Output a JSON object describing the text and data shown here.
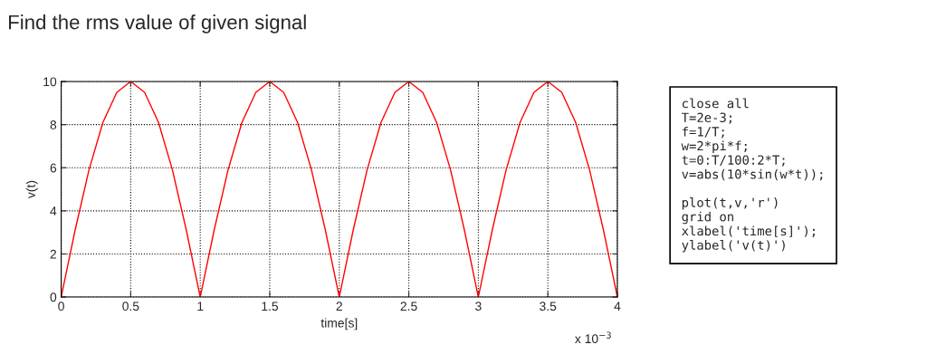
{
  "chart_data": {
    "type": "line",
    "title": "Find the rms value of given signal",
    "xlabel": "time[s]",
    "ylabel": "v(t)",
    "x": [
      0,
      0.1,
      0.2,
      0.3,
      0.4,
      0.5,
      0.6,
      0.7,
      0.8,
      0.9,
      1,
      1.1,
      1.2,
      1.3,
      1.4,
      1.5,
      1.6,
      1.7,
      1.8,
      1.9,
      2,
      2.1,
      2.2,
      2.3,
      2.4,
      2.5,
      2.6,
      2.7,
      2.8,
      2.9,
      3,
      3.1,
      3.2,
      3.3,
      3.4,
      3.5,
      3.6,
      3.7,
      3.8,
      3.9,
      4
    ],
    "series": [
      {
        "color": "#ff0000",
        "values": [
          0,
          3.1,
          5.9,
          8.1,
          9.5,
          10,
          9.5,
          8.1,
          5.9,
          3.1,
          0,
          3.1,
          5.9,
          8.1,
          9.5,
          10,
          9.5,
          8.1,
          5.9,
          3.1,
          0,
          3.1,
          5.9,
          8.1,
          9.5,
          10,
          9.5,
          8.1,
          5.9,
          3.1,
          0,
          3.1,
          5.9,
          8.1,
          9.5,
          10,
          9.5,
          8.1,
          5.9,
          3.1,
          0
        ]
      }
    ],
    "xlim": [
      0,
      4
    ],
    "xticks": [
      0,
      0.5,
      1,
      1.5,
      2,
      2.5,
      3,
      3.5,
      4
    ],
    "ylim": [
      0,
      10
    ],
    "yticks": [
      0,
      2,
      4,
      6,
      8,
      10
    ],
    "grid": true,
    "line_style": "solid",
    "marker": "none",
    "annotations": [
      "close all\nT=2e-3;\nf=1/T;\nw=2*pi*f;\nt=0:T/100:2*T;\nv=abs(10*sin(w*t));\n\nplot(t,v,'r')\ngrid on\nxlabel('time[s]');\nylabel('v(t)')",
      "x 10$^{−3}$"
    ]
  }
}
